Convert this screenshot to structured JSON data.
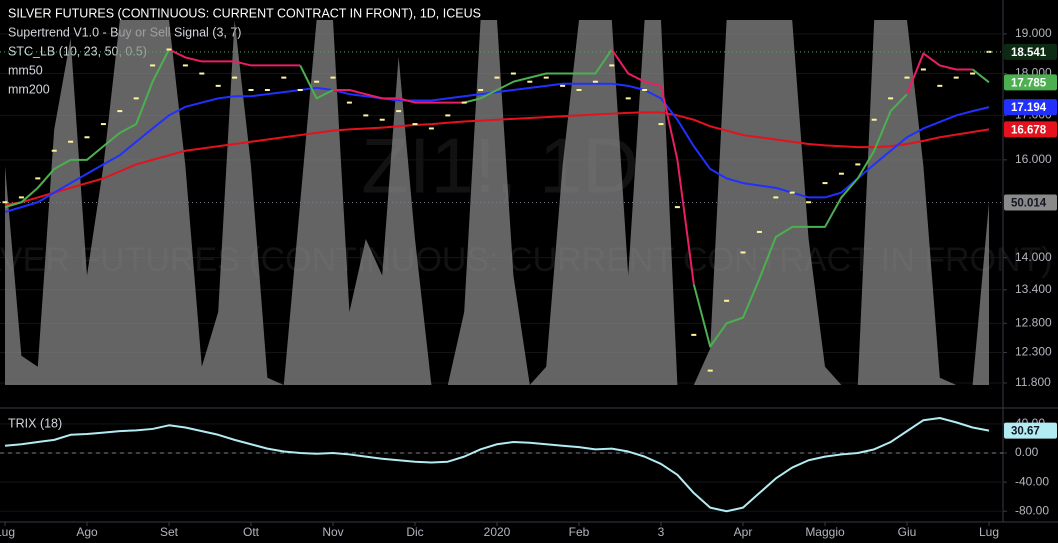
{
  "chart_data": [
    {
      "type": "line",
      "title": "SILVER FUTURES (CONTINUOUS: CURRENT CONTRACT IN FRONT), 1D, ICEUS",
      "watermark": "ZI1!, 1D",
      "watermark_subtitle": "SILVER FUTURES (CONTINUOUS: CURRENT CONTRACT IN FRONT)",
      "categories": [
        "Lug",
        null,
        null,
        null,
        null,
        "Ago",
        null,
        null,
        null,
        null,
        "Set",
        null,
        null,
        null,
        null,
        "Ott",
        null,
        null,
        null,
        null,
        "Nov",
        null,
        null,
        null,
        null,
        "Dic",
        null,
        null,
        null,
        null,
        "2020",
        null,
        null,
        null,
        null,
        "Feb",
        null,
        null,
        null,
        null,
        "3",
        null,
        null,
        null,
        null,
        "Apr",
        null,
        null,
        null,
        null,
        "Maggio",
        null,
        null,
        null,
        null,
        "Giu",
        null,
        null,
        null,
        null,
        "Lug"
      ],
      "log_scale": true,
      "grid": true,
      "ylim": [
        11.45,
        19.9
      ],
      "yticks": [
        {
          "value": 11.8,
          "label": "11.800"
        },
        {
          "value": 12.3,
          "label": "12.300"
        },
        {
          "value": 12.8,
          "label": "12.800"
        },
        {
          "value": 13.4,
          "label": "13.400"
        },
        {
          "value": 14,
          "label": "14.000"
        },
        {
          "value": 16,
          "label": "16.000"
        },
        {
          "value": 17,
          "label": "17.000"
        },
        {
          "value": 18,
          "label": "18.000"
        },
        {
          "value": 19,
          "label": "19.000"
        }
      ],
      "y2lim": [
        0,
        100
      ],
      "price": {
        "color": "#fff59d",
        "values": [
          15.1,
          15.2,
          15.6,
          16.2,
          16.4,
          16.5,
          16.8,
          17.1,
          17.4,
          18.2,
          18.6,
          18.2,
          18.0,
          17.7,
          17.9,
          17.6,
          17.6,
          17.9,
          17.6,
          17.8,
          17.9,
          17.3,
          17.0,
          16.9,
          17.1,
          16.8,
          16.7,
          17.0,
          17.3,
          17.6,
          17.9,
          18.0,
          17.8,
          17.9,
          17.7,
          17.6,
          17.8,
          18.2,
          17.4,
          17.6,
          16.8,
          15.0,
          12.6,
          12.0,
          13.2,
          14.1,
          14.5,
          15.2,
          15.3,
          15.1,
          15.5,
          15.7,
          15.9,
          16.9,
          17.4,
          17.9,
          18.1,
          17.7,
          17.9,
          18.0,
          18.541
        ]
      },
      "series": [
        {
          "name": "Supertrend V1.0 - Buy or Sell Signal (3, 7)",
          "kind": "line",
          "colors": [
            "#4caf50",
            "#4caf50",
            "#4caf50",
            "#4caf50",
            "#4caf50",
            "#4caf50",
            "#4caf50",
            "#4caf50",
            "#4caf50",
            "#4caf50",
            "#4caf50",
            "#e91e63",
            "#e91e63",
            "#e91e63",
            "#e91e63",
            "#e91e63",
            "#e91e63",
            "#e91e63",
            "#e91e63",
            "#4caf50",
            "#4caf50",
            "#e91e63",
            "#e91e63",
            "#e91e63",
            "#e91e63",
            "#e91e63",
            "#e91e63",
            "#e91e63",
            "#e91e63",
            "#4caf50",
            "#4caf50",
            "#4caf50",
            "#4caf50",
            "#4caf50",
            "#4caf50",
            "#4caf50",
            "#4caf50",
            "#4caf50",
            "#e91e63",
            "#e91e63",
            "#e91e63",
            "#e91e63",
            "#e91e63",
            "#4caf50",
            "#4caf50",
            "#4caf50",
            "#4caf50",
            "#4caf50",
            "#4caf50",
            "#4caf50",
            "#4caf50",
            "#4caf50",
            "#4caf50",
            "#4caf50",
            "#4caf50",
            "#4caf50",
            "#e91e63",
            "#e91e63",
            "#e91e63",
            "#e91e63",
            "#4caf50"
          ],
          "values": [
            15.0,
            15.1,
            15.4,
            15.8,
            16.0,
            16.0,
            16.3,
            16.6,
            16.8,
            17.8,
            18.6,
            18.4,
            18.3,
            18.3,
            18.3,
            18.2,
            18.2,
            18.2,
            18.2,
            17.4,
            17.6,
            17.6,
            17.5,
            17.4,
            17.4,
            17.3,
            17.3,
            17.3,
            17.3,
            17.4,
            17.6,
            17.8,
            17.9,
            18.0,
            18.0,
            18.0,
            18.0,
            18.6,
            18.0,
            17.8,
            17.7,
            16.0,
            13.5,
            12.4,
            12.8,
            12.9,
            13.6,
            14.4,
            14.6,
            14.6,
            14.6,
            15.2,
            15.6,
            16.2,
            17.1,
            17.5,
            18.5,
            18.2,
            18.1,
            18.1,
            17.785
          ]
        },
        {
          "name": "STC_LB (10, 23, 50, 0.5)",
          "kind": "area",
          "axis": "y2",
          "color": "#8a8a8a",
          "values": [
            60,
            8,
            5,
            70,
            95,
            30,
            60,
            100,
            100,
            100,
            100,
            60,
            5,
            20,
            100,
            60,
            2,
            0,
            50,
            100,
            100,
            20,
            40,
            30,
            90,
            40,
            0,
            0,
            20,
            100,
            100,
            30,
            0,
            5,
            60,
            100,
            100,
            100,
            30,
            100,
            100,
            0,
            0,
            10,
            100,
            100,
            100,
            100,
            100,
            40,
            5,
            0,
            0,
            100,
            100,
            100,
            60,
            2,
            0,
            0,
            50.014
          ]
        },
        {
          "name": "mm50",
          "kind": "line",
          "color": "#2130ff",
          "values": [
            14.9,
            15.0,
            15.1,
            15.3,
            15.5,
            15.7,
            15.9,
            16.1,
            16.4,
            16.7,
            17.0,
            17.2,
            17.3,
            17.4,
            17.45,
            17.45,
            17.5,
            17.55,
            17.6,
            17.65,
            17.6,
            17.5,
            17.45,
            17.4,
            17.35,
            17.35,
            17.35,
            17.4,
            17.45,
            17.5,
            17.55,
            17.6,
            17.65,
            17.7,
            17.75,
            17.75,
            17.75,
            17.75,
            17.7,
            17.6,
            17.4,
            16.9,
            16.3,
            15.8,
            15.6,
            15.5,
            15.45,
            15.4,
            15.3,
            15.2,
            15.2,
            15.3,
            15.6,
            15.9,
            16.2,
            16.5,
            16.7,
            16.85,
            17.0,
            17.1,
            17.194
          ]
        },
        {
          "name": "mm200",
          "kind": "line",
          "color": "#e3121e",
          "values": [
            15.05,
            15.1,
            15.2,
            15.3,
            15.4,
            15.5,
            15.6,
            15.75,
            15.9,
            16.0,
            16.1,
            16.2,
            16.25,
            16.3,
            16.35,
            16.4,
            16.45,
            16.5,
            16.55,
            16.6,
            16.65,
            16.68,
            16.7,
            16.72,
            16.75,
            16.78,
            16.8,
            16.83,
            16.86,
            16.88,
            16.9,
            16.92,
            16.94,
            16.96,
            16.98,
            17.0,
            17.02,
            17.04,
            17.06,
            17.07,
            17.07,
            17.0,
            16.9,
            16.75,
            16.65,
            16.55,
            16.5,
            16.45,
            16.4,
            16.35,
            16.32,
            16.3,
            16.28,
            16.28,
            16.3,
            16.35,
            16.42,
            16.5,
            16.56,
            16.62,
            16.678
          ]
        }
      ]
    },
    {
      "type": "line",
      "grid": true,
      "zero_line": true,
      "ylim": [
        -92,
        59
      ],
      "yticks": [
        {
          "value": 40,
          "label": "40.00"
        },
        {
          "value": 0,
          "label": "0.00"
        },
        {
          "value": -40,
          "label": "-40.00"
        },
        {
          "value": -80,
          "label": "-80.00"
        }
      ],
      "series": [
        {
          "name": "TRIX (18)",
          "kind": "line",
          "color": "#b2ebf2",
          "values": [
            10,
            12,
            15,
            18,
            25,
            26,
            28,
            30,
            31,
            33,
            38,
            35,
            30,
            25,
            18,
            12,
            6,
            2,
            0,
            -1,
            0,
            -2,
            -5,
            -8,
            -10,
            -12,
            -13,
            -12,
            -5,
            5,
            12,
            15,
            14,
            12,
            10,
            8,
            5,
            6,
            2,
            -5,
            -15,
            -30,
            -55,
            -75,
            -80,
            -75,
            -55,
            -35,
            -20,
            -10,
            -5,
            -2,
            0,
            5,
            15,
            30,
            45,
            48,
            42,
            35,
            30.67
          ]
        }
      ]
    }
  ]
}
